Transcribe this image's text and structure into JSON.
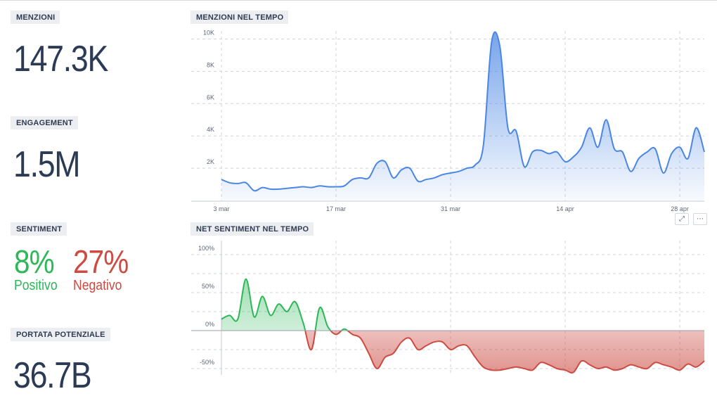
{
  "metrics": {
    "mentions": {
      "label": "MENZIONI",
      "value": "147.3K"
    },
    "engagement": {
      "label": "ENGAGEMENT",
      "value": "1.5M"
    },
    "sentiment": {
      "label": "SENTIMENT",
      "positive_value": "8%",
      "positive_label": "Positivo",
      "negative_value": "27%",
      "negative_label": "Negativo"
    },
    "reach": {
      "label": "PORTATA POTENZIALE",
      "value": "36.7B"
    }
  },
  "icons": {
    "expand": "expand-icon",
    "more": "more-icon"
  },
  "colors": {
    "mentions_line": "#4a86e3",
    "positive": "#2db858",
    "negative": "#cc4b42",
    "text": "#2b3a55"
  },
  "chart_data": [
    {
      "type": "area",
      "title": "MENZIONI NEL TEMPO",
      "xlabel": "",
      "ylabel": "",
      "x_ticks": [
        "3 mar",
        "17 mar",
        "31 mar",
        "14 apr",
        "28 apr"
      ],
      "y_ticks": [
        "2K",
        "4K",
        "6K",
        "8K",
        "10K"
      ],
      "ylim": [
        0,
        10500
      ],
      "grid": true,
      "series": [
        {
          "x": [
            0,
            1,
            2,
            3,
            4,
            5,
            6,
            7,
            8,
            9,
            10,
            11,
            12,
            13,
            14,
            15,
            16,
            17,
            18,
            19,
            20,
            21,
            22,
            23,
            24,
            25,
            26,
            27,
            28,
            29,
            30,
            31,
            32,
            33,
            34,
            35,
            36,
            37,
            38,
            39,
            40,
            41,
            42,
            43,
            44,
            45,
            46,
            47,
            48,
            49,
            50,
            51,
            52,
            53,
            54,
            55,
            56,
            57,
            58,
            59,
            60,
            61,
            62,
            63,
            64,
            65,
            66,
            67,
            68,
            69,
            70,
            71,
            72,
            73,
            74,
            75,
            76,
            77,
            78,
            79,
            80,
            81,
            82,
            83,
            84,
            85,
            86,
            87,
            88,
            89,
            90,
            91,
            92,
            93,
            94,
            95,
            96,
            97,
            98,
            99,
            100,
            101,
            102,
            103,
            104,
            105,
            106,
            107,
            108,
            109,
            110,
            111,
            112,
            113,
            114,
            115,
            116,
            117,
            118,
            119,
            120,
            121,
            122,
            123,
            124,
            125,
            126,
            127,
            128,
            129,
            130,
            131,
            132,
            133,
            134,
            135,
            136,
            137,
            138,
            139,
            140,
            141,
            142,
            143,
            144,
            145,
            146,
            147,
            148,
            149,
            150,
            151,
            152,
            153,
            154,
            155,
            156,
            157,
            158,
            159,
            160,
            161,
            162,
            163,
            164,
            165,
            166,
            167,
            168,
            169,
            170,
            171,
            172,
            173,
            174,
            175,
            176,
            177,
            178,
            179,
            180,
            181,
            182,
            183,
            184,
            185,
            186,
            187,
            188,
            189,
            190,
            191,
            192,
            193,
            194,
            195,
            196,
            197,
            198,
            199,
            200,
            201,
            202,
            203,
            204,
            205,
            206,
            207,
            208,
            209,
            210,
            211,
            212,
            213,
            214,
            215,
            216,
            217,
            218,
            219,
            220,
            221,
            222,
            223,
            224,
            225,
            226,
            227,
            228,
            229,
            230,
            231,
            232,
            233,
            234,
            235,
            236,
            237,
            238,
            239,
            240,
            241,
            242,
            243,
            244,
            245,
            246,
            247,
            248,
            249,
            250,
            251,
            252,
            253,
            254,
            255,
            256,
            257,
            258,
            259,
            260,
            261,
            262,
            263,
            264,
            265,
            266,
            267,
            268,
            269,
            270,
            271,
            272,
            273,
            274,
            275,
            276,
            277,
            278,
            279,
            280,
            281,
            282,
            283,
            284,
            285,
            286,
            287,
            288,
            289,
            290,
            291,
            292,
            293,
            294,
            295,
            296,
            297,
            298,
            299,
            300,
            301,
            302,
            303,
            304,
            305,
            306,
            307,
            308,
            309,
            310,
            311,
            312,
            313,
            314,
            315,
            316,
            317,
            318,
            319,
            320,
            321,
            322,
            323,
            324,
            325,
            326,
            327,
            328,
            329,
            330,
            331,
            332,
            333,
            334,
            335,
            336,
            337,
            338,
            339,
            340,
            341,
            342,
            343,
            344,
            345,
            346,
            347,
            348,
            349,
            350,
            351,
            352,
            353,
            354,
            355,
            356,
            357,
            358,
            359,
            360,
            361,
            362,
            363,
            364,
            365,
            366,
            367,
            368,
            369,
            370,
            371,
            372,
            373,
            374,
            375,
            376,
            377,
            378,
            379,
            380,
            381,
            382,
            383,
            384,
            385,
            386,
            387,
            388,
            389,
            390,
            391,
            392,
            393,
            394,
            395,
            396,
            397,
            398,
            399,
            400,
            401,
            402,
            403,
            404,
            405,
            406,
            407,
            408,
            409,
            410,
            411,
            412,
            413,
            414,
            415,
            416,
            417,
            418,
            419,
            420,
            421,
            422,
            423,
            424,
            425,
            426,
            427,
            428,
            429,
            430,
            431,
            432,
            433,
            434,
            435,
            436,
            437,
            438,
            439,
            440,
            441,
            442,
            443,
            444,
            445,
            446,
            447,
            448,
            449,
            450,
            451,
            452,
            453,
            454,
            455,
            456,
            457,
            458,
            459,
            460,
            461,
            462,
            463,
            464,
            465,
            466,
            467,
            468,
            469,
            470,
            471,
            472,
            473,
            474,
            475,
            476,
            477,
            478,
            479,
            480,
            481,
            482,
            483,
            484,
            485,
            486,
            487,
            488,
            489,
            490,
            491,
            492,
            493,
            494,
            495,
            496,
            497,
            498,
            499,
            500,
            501,
            502,
            503,
            504,
            505,
            506,
            507,
            508,
            509,
            510,
            511,
            512,
            513,
            514,
            515,
            516,
            517,
            518,
            519,
            520,
            521,
            522,
            523,
            524,
            525,
            526,
            527,
            528,
            529,
            530,
            531,
            532,
            533,
            534,
            535,
            536,
            537,
            538,
            539,
            540,
            541,
            542,
            543,
            544,
            545,
            546,
            547,
            548,
            549,
            550,
            551,
            552,
            553,
            554,
            555,
            556,
            557,
            558,
            559,
            560,
            561,
            562,
            563,
            564,
            565,
            566,
            567,
            568,
            569,
            570,
            571,
            572,
            573,
            574,
            575,
            576,
            577,
            578,
            579,
            580,
            581,
            582,
            583,
            584,
            585,
            586,
            587,
            588,
            589,
            590,
            591,
            592,
            593,
            594,
            595,
            596,
            597,
            598,
            599,
            600,
            601,
            602,
            603,
            604,
            605,
            606,
            607,
            608,
            609,
            610,
            611,
            612,
            613,
            614,
            615,
            616,
            617,
            618,
            619,
            620,
            621,
            622,
            623,
            624,
            625,
            626,
            627,
            628,
            629,
            630,
            631,
            632,
            633,
            634,
            635,
            636,
            637,
            638,
            639,
            640,
            641,
            642,
            643,
            644,
            645,
            646,
            647,
            648,
            649,
            650,
            651,
            652,
            653,
            654,
            655,
            656,
            657,
            658,
            659,
            660,
            661,
            662,
            663,
            664,
            665,
            666,
            667,
            668,
            669,
            670,
            671,
            672,
            673,
            674,
            675,
            676,
            677,
            678,
            679,
            680,
            681,
            682,
            683,
            684,
            685,
            686,
            687,
            688,
            689,
            690,
            691,
            692,
            693,
            694,
            695,
            696,
            697,
            698,
            699,
            700,
            701,
            702,
            703,
            704,
            705,
            706,
            707,
            708,
            709,
            710,
            711,
            712,
            713,
            714,
            715,
            716,
            717,
            718,
            719,
            720,
            721,
            722,
            723,
            724,
            725,
            726,
            727,
            728,
            729,
            730,
            731,
            732,
            733,
            734,
            735,
            736,
            737,
            738,
            739,
            740,
            741,
            742,
            743,
            744,
            745,
            746,
            747,
            748,
            749,
            750,
            751,
            752,
            753,
            754,
            755,
            756,
            757,
            758,
            759,
            760,
            761,
            762,
            763,
            764,
            765,
            766,
            767,
            768,
            769,
            770,
            771,
            772,
            773,
            774,
            775,
            776,
            777,
            778,
            779,
            780,
            781,
            782,
            783,
            784,
            785,
            786,
            787,
            788,
            789,
            790,
            791,
            792,
            793,
            794,
            795,
            796,
            797,
            798,
            799,
            800,
            801,
            802,
            803,
            804,
            805,
            806,
            807,
            808,
            809,
            810,
            811,
            812,
            813,
            814,
            815,
            816,
            817,
            818,
            819,
            820,
            821,
            822,
            823,
            824,
            825,
            826,
            827,
            828,
            829,
            830,
            831,
            832,
            833,
            834,
            835,
            836,
            837,
            838,
            839,
            840,
            841,
            842,
            843,
            844,
            845,
            846,
            847,
            848,
            849,
            850,
            851,
            852,
            853,
            854,
            855,
            856,
            857,
            858,
            859,
            860,
            861,
            862,
            863,
            864,
            865,
            866,
            867,
            868,
            869,
            870,
            871,
            872,
            873,
            874,
            875,
            876,
            877,
            878,
            879,
            880,
            881,
            882,
            883,
            884,
            885,
            886,
            887,
            888,
            889,
            890,
            891,
            892,
            893,
            894,
            895,
            896,
            897,
            898,
            899,
            900,
            901,
            902,
            903,
            904,
            905,
            906,
            907,
            908,
            909,
            910,
            911,
            912,
            913,
            914,
            915,
            916,
            917,
            918,
            919,
            920,
            921,
            922,
            923,
            924,
            925,
            926,
            927,
            928,
            929,
            930,
            931,
            932,
            933,
            934,
            935,
            936,
            937,
            938,
            939,
            940,
            941,
            942,
            943,
            944,
            945,
            946,
            947,
            948,
            949,
            950,
            951,
            952,
            953,
            954,
            955,
            956,
            957,
            958,
            959,
            960,
            961,
            962,
            963,
            964,
            965,
            966,
            967,
            968,
            969,
            970,
            971,
            972,
            973,
            974,
            975,
            976,
            977,
            978,
            979,
            980,
            981,
            982,
            983,
            984,
            985,
            986,
            987,
            988,
            989,
            990,
            991,
            992,
            993,
            994,
            995,
            996,
            997,
            998,
            999,
            1000
          ],
          "_note": "unused"
        }
      ]
    }
  ]
}
